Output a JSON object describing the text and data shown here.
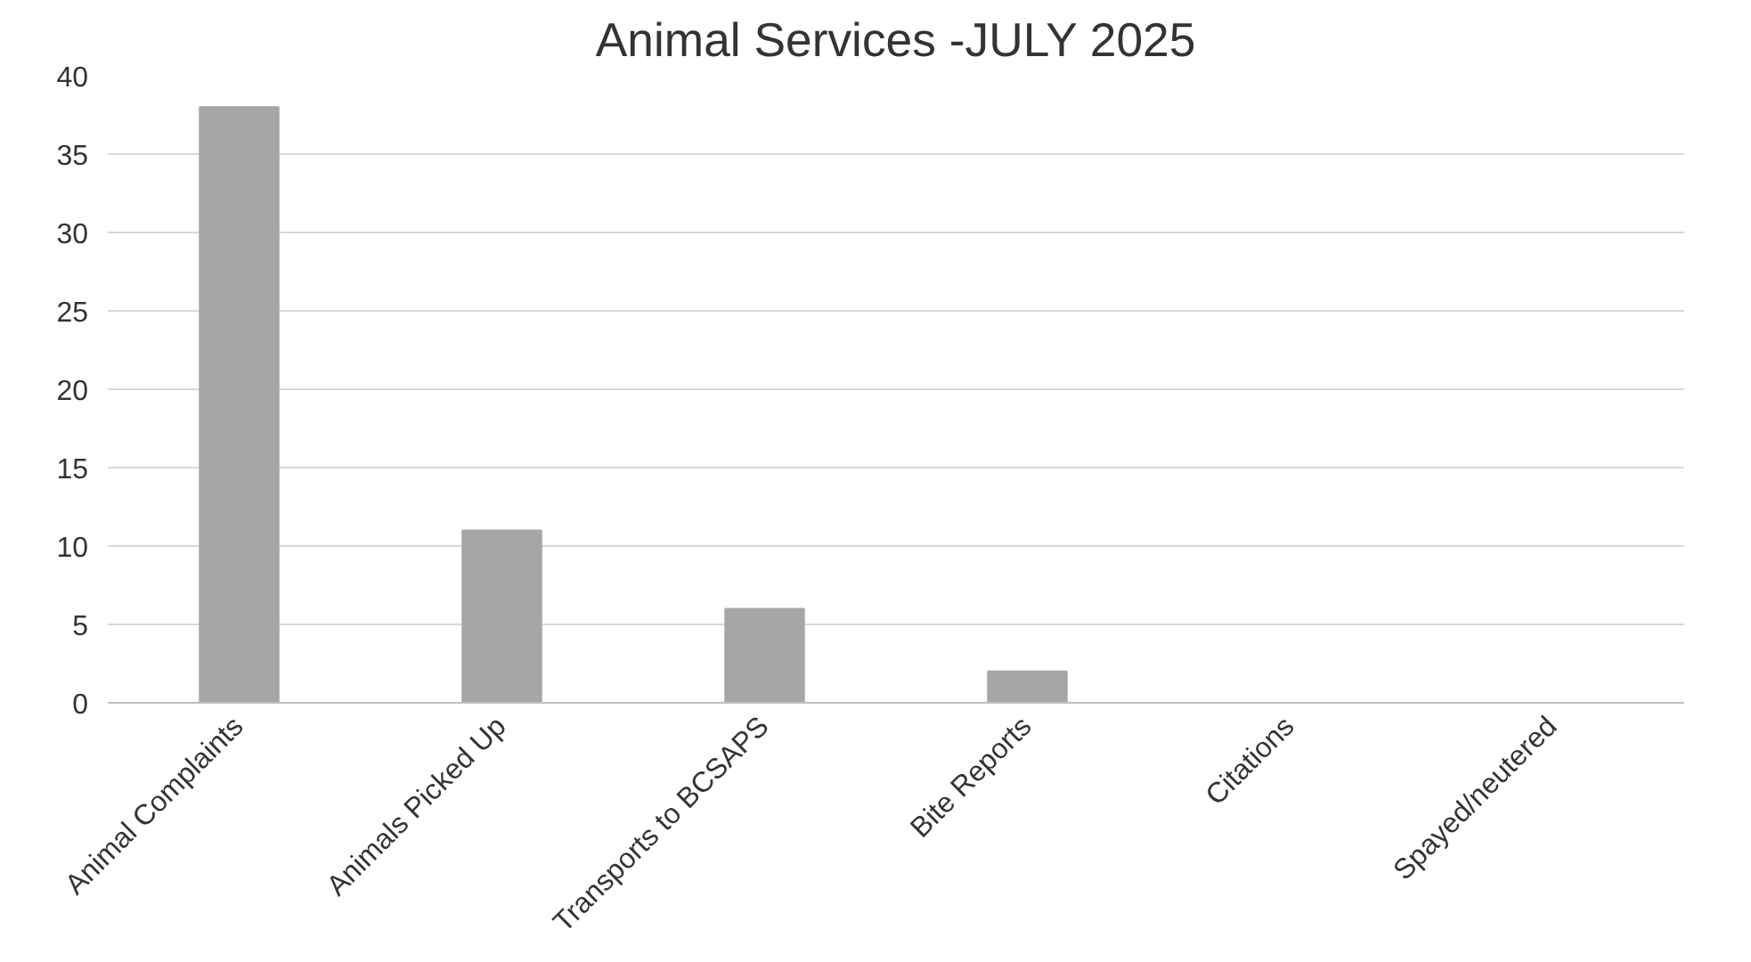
{
  "chart_data": {
    "type": "bar",
    "title": "Animal Services -JULY 2025",
    "categories": [
      "Animal Complaints",
      "Animals Picked Up",
      "Transports to BCSAPS",
      "Bite Reports",
      "Citations",
      "Spayed/neutered"
    ],
    "values": [
      38,
      11,
      6,
      2,
      0,
      0
    ],
    "color": "#a6a6a6",
    "ylim": [
      0,
      40
    ],
    "yticks": [
      0,
      5,
      10,
      15,
      20,
      25,
      30,
      35,
      40
    ],
    "grid": "y"
  }
}
